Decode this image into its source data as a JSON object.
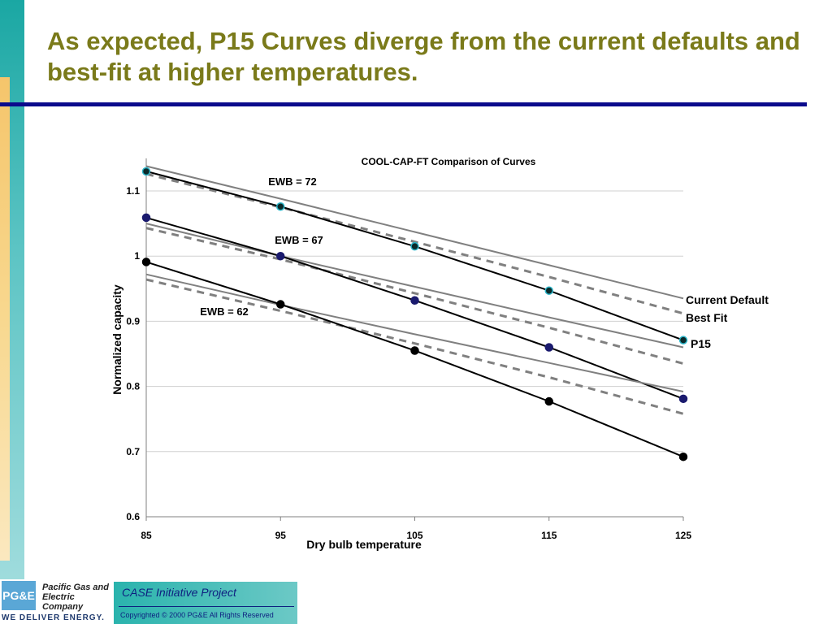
{
  "slide": {
    "title": "As expected, P15 Curves diverge from the current defaults and best-fit at higher temperatures."
  },
  "footer": {
    "logo_mark": "PG&E",
    "company_name": "Pacific Gas and Electric Company",
    "slogan": "WE DELIVER ENERGY.",
    "project": "CASE Initiative Project",
    "copyright": "Copyrighted © 2000 PG&E All Rights Reserved"
  },
  "colors": {
    "title": "#7a7a1a",
    "rule": "#0a0a8c",
    "p15": "#000000",
    "current_default": "#808080",
    "best_fit": "#808080",
    "marker_edge_top": "#2bb5c9",
    "marker_fill_mid": "#1a1a6e"
  },
  "chart_data": {
    "type": "line",
    "title": "COOL-CAP-FT Comparison of Curves",
    "xlabel": "Dry bulb temperature",
    "ylabel": "Normalized capacity",
    "x": [
      85,
      95,
      105,
      115,
      125
    ],
    "xlim": [
      85,
      125
    ],
    "ylim": [
      0.6,
      1.15
    ],
    "xticks": [
      "85",
      "95",
      "105",
      "115",
      "125"
    ],
    "yticks": [
      "0.6",
      "0.7",
      "0.8",
      "0.9",
      "1",
      "1.1"
    ],
    "grid": "horizontal",
    "legend_labels": [
      "Current Default",
      "Best Fit",
      "P15"
    ],
    "groups": [
      {
        "label": "EWB = 72",
        "marker": "teal",
        "series": [
          {
            "name": "P15",
            "style": "solid-black",
            "values": [
              1.13,
              1.076,
              1.015,
              0.947,
              0.871
            ]
          },
          {
            "name": "Current Default",
            "style": "solid-gray",
            "values": [
              1.138,
              1.088,
              1.037,
              0.986,
              0.935
            ]
          },
          {
            "name": "Best Fit",
            "style": "dashed-gray",
            "values": [
              1.126,
              1.075,
              1.022,
              0.968,
              0.912
            ]
          }
        ]
      },
      {
        "label": "EWB = 67",
        "marker": "navy",
        "series": [
          {
            "name": "P15",
            "style": "solid-black",
            "values": [
              1.059,
              1.0,
              0.932,
              0.86,
              0.781
            ]
          },
          {
            "name": "Current Default",
            "style": "solid-gray",
            "values": [
              1.05,
              1.0,
              0.953,
              0.906,
              0.86
            ]
          },
          {
            "name": "Best Fit",
            "style": "dashed-gray",
            "values": [
              1.043,
              0.995,
              0.943,
              0.89,
              0.835
            ]
          }
        ]
      },
      {
        "label": "EWB = 62",
        "marker": "black",
        "series": [
          {
            "name": "P15",
            "style": "solid-black",
            "values": [
              0.991,
              0.926,
              0.855,
              0.777,
              0.692
            ]
          },
          {
            "name": "Current Default",
            "style": "solid-gray",
            "values": [
              0.972,
              0.925,
              0.88,
              0.836,
              0.792
            ]
          },
          {
            "name": "Best Fit",
            "style": "dashed-gray",
            "values": [
              0.964,
              0.916,
              0.866,
              0.814,
              0.758
            ]
          }
        ]
      }
    ]
  }
}
